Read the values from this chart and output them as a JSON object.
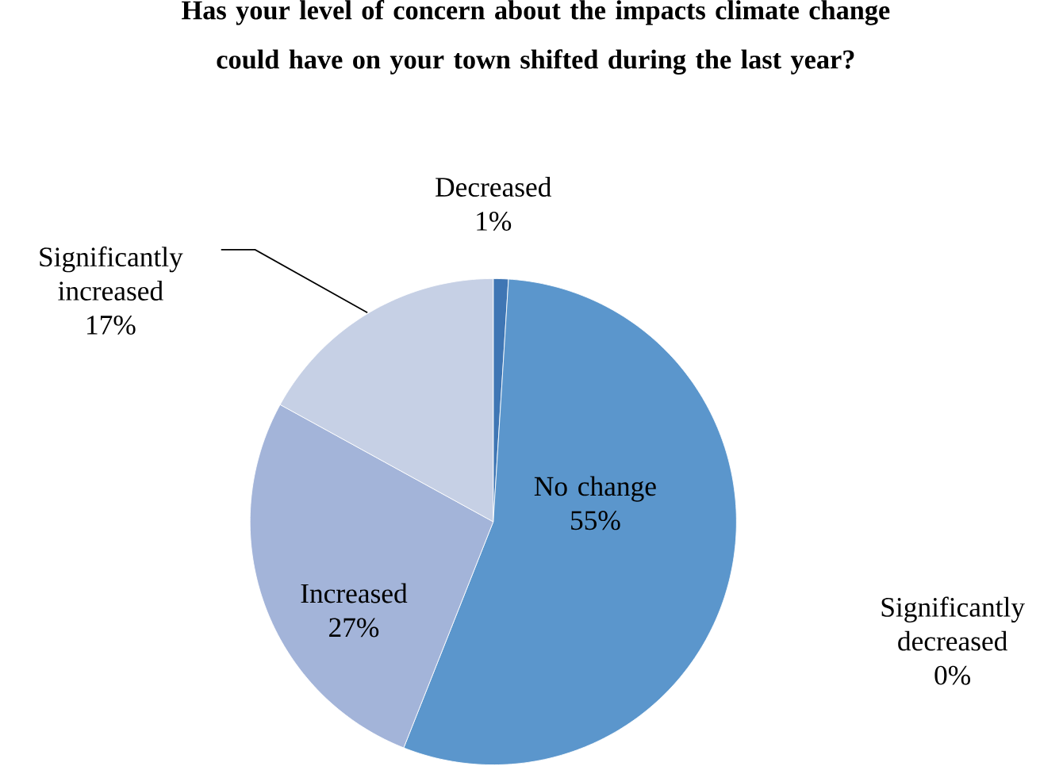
{
  "chart_data": {
    "type": "pie",
    "title": "Has your level of concern about the impacts climate change could have on your town shifted during the last year?",
    "categories": [
      "Significantly decreased",
      "Decreased",
      "No change",
      "Increased",
      "Significantly increased"
    ],
    "values": [
      0,
      1,
      55,
      27,
      17
    ],
    "value_labels": [
      "0%",
      "1%",
      "55%",
      "27%",
      "17%"
    ],
    "colors": [
      "#2d5a8c",
      "#3f76b4",
      "#5b96cc",
      "#a3b4d9",
      "#c6d0e5"
    ]
  }
}
